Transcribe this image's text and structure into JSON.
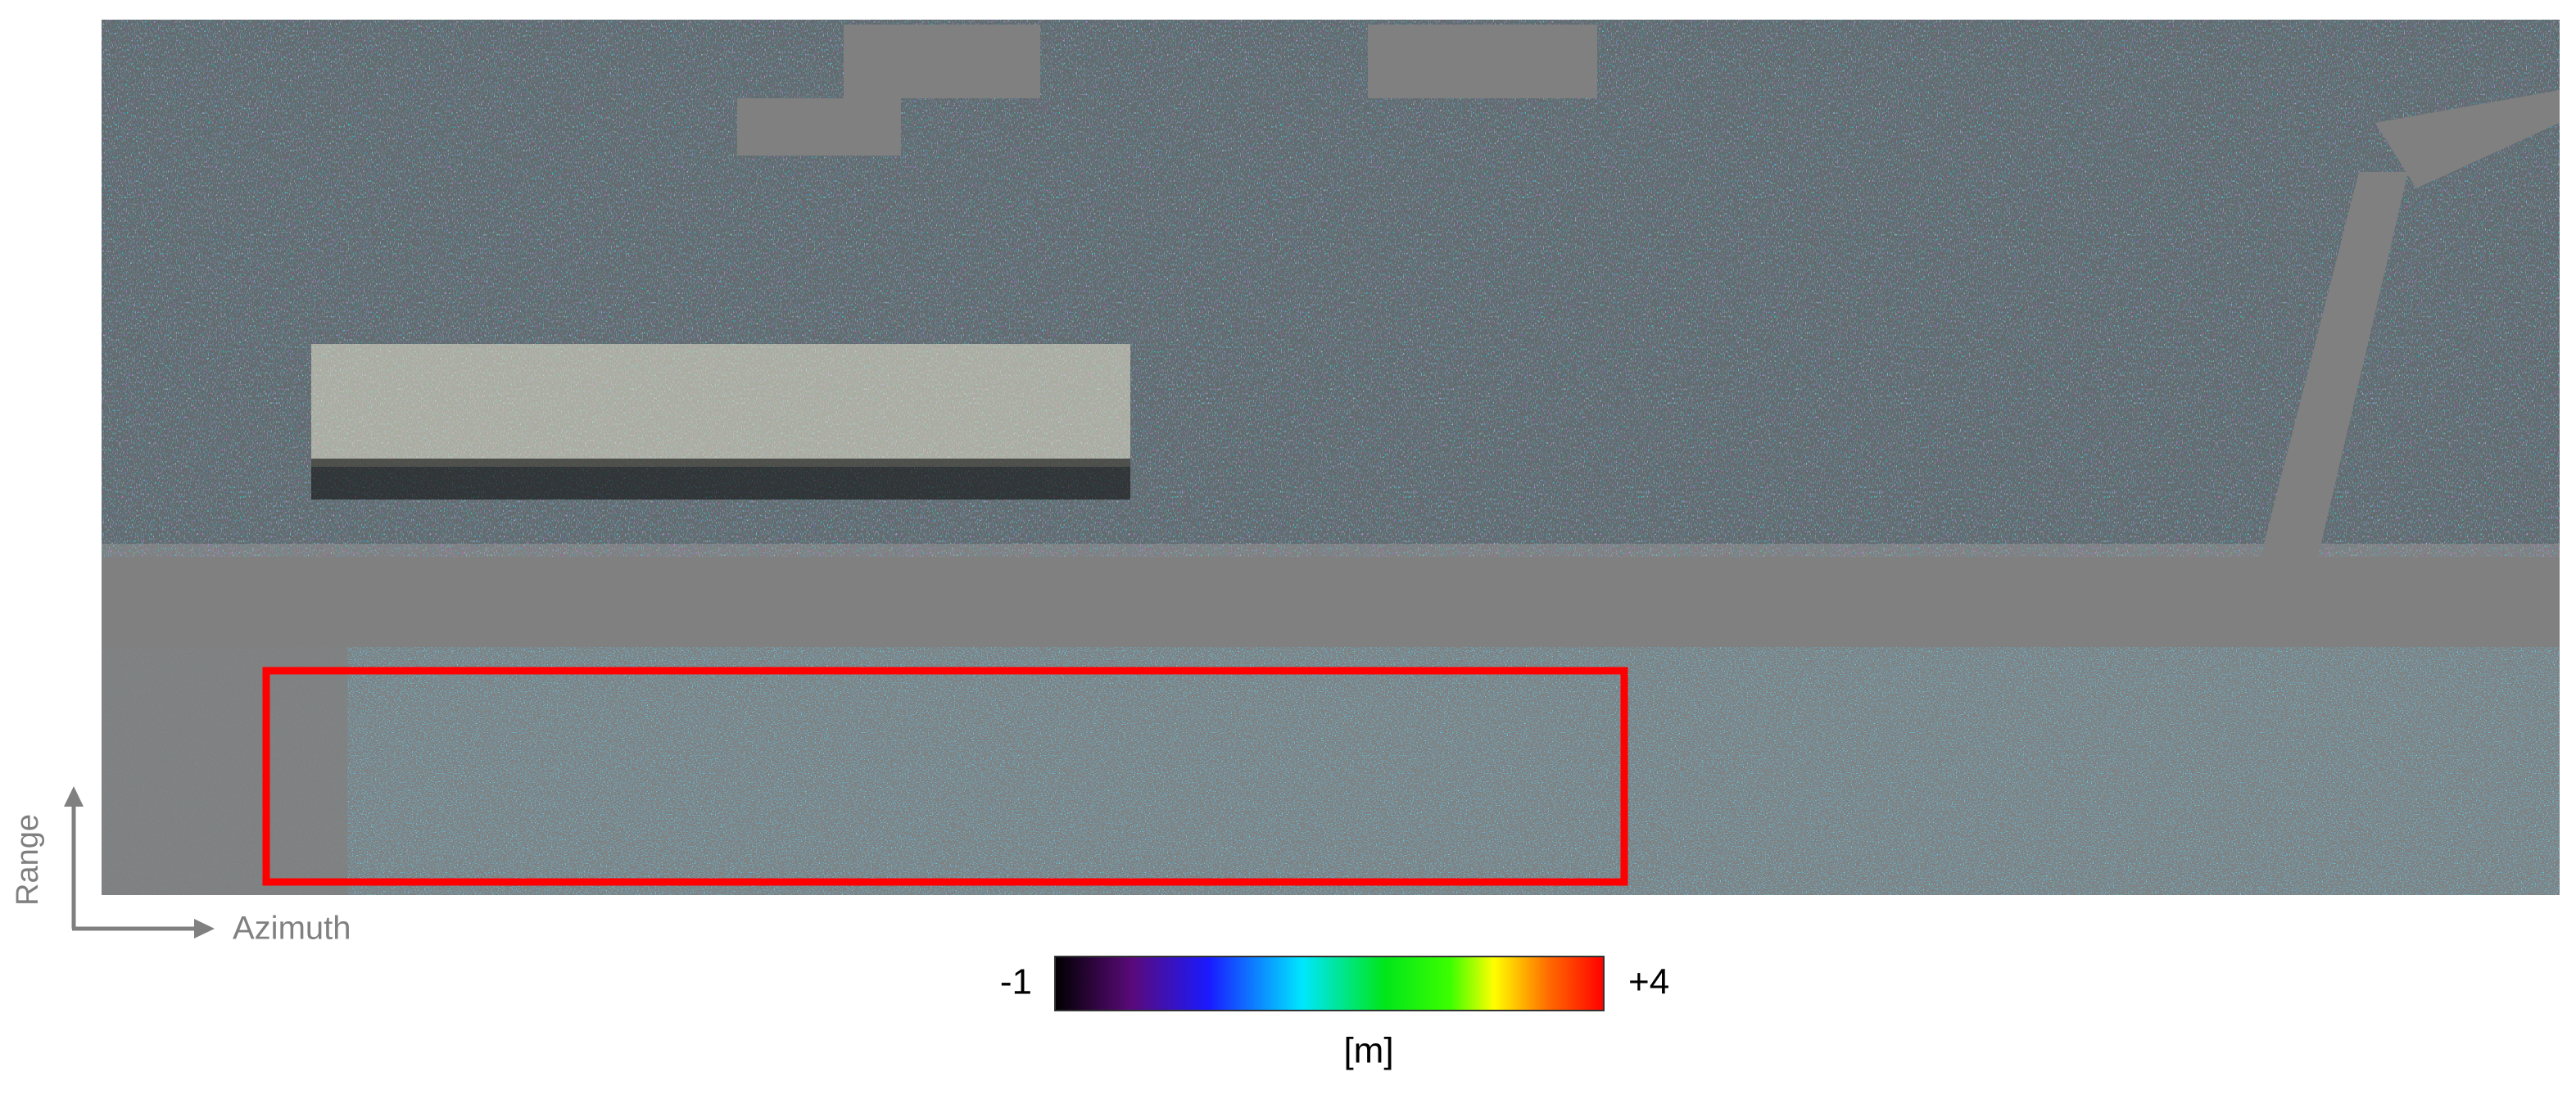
{
  "axes": {
    "vertical_label": "Range",
    "horizontal_label": "Azimuth"
  },
  "colorbar": {
    "min_label": "-1",
    "max_label": "+4",
    "unit": "[m]"
  }
}
